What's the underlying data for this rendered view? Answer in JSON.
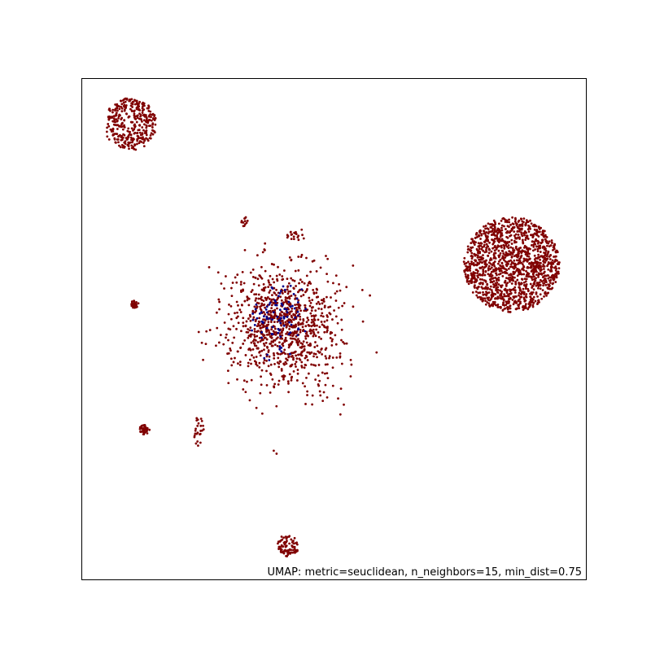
{
  "chart_data": {
    "type": "scatter",
    "title": "",
    "xlabel": "",
    "ylabel": "",
    "annotation": "UMAP: metric=seuclidean, n_neighbors=15, min_dist=0.75",
    "axes_ticks": false,
    "grid": false,
    "xlim": [
      0,
      100
    ],
    "ylim": [
      0,
      100
    ],
    "colors": {
      "red": "#800000",
      "blue": "#00008b",
      "frame": "#000000"
    },
    "series": [
      {
        "color": "red",
        "clusters": [
          {
            "cx": 9.7,
            "cy": 90.8,
            "rx": 5.2,
            "ry": 5.2,
            "n": 350,
            "dist": "disk"
          },
          {
            "cx": 85.3,
            "cy": 62.8,
            "rx": 9.5,
            "ry": 9.5,
            "n": 1400,
            "dist": "disk"
          },
          {
            "cx": 40.2,
            "cy": 51.0,
            "rx": 10.0,
            "ry": 11.5,
            "n": 1000,
            "dist": "diffuse"
          },
          {
            "cx": 10.6,
            "cy": 54.9,
            "rx": 0.8,
            "ry": 0.8,
            "n": 30,
            "dist": "disk"
          },
          {
            "cx": 12.5,
            "cy": 29.9,
            "rx": 1.0,
            "ry": 1.0,
            "n": 40,
            "dist": "disk"
          },
          {
            "cx": 41.0,
            "cy": 6.8,
            "rx": 2.2,
            "ry": 2.2,
            "n": 90,
            "dist": "disk"
          },
          {
            "cx": 23.3,
            "cy": 29.5,
            "rx": 1.0,
            "ry": 3.0,
            "n": 25,
            "dist": "disk"
          },
          {
            "cx": 32.4,
            "cy": 71.5,
            "rx": 0.7,
            "ry": 1.2,
            "n": 12,
            "dist": "disk"
          },
          {
            "cx": 42.3,
            "cy": 68.5,
            "rx": 2.2,
            "ry": 0.9,
            "n": 18,
            "dist": "disk"
          }
        ]
      },
      {
        "color": "blue",
        "clusters": [
          {
            "cx": 38.8,
            "cy": 52.2,
            "rx": 4.5,
            "ry": 6.0,
            "n": 90,
            "dist": "diffuse"
          }
        ]
      }
    ]
  }
}
